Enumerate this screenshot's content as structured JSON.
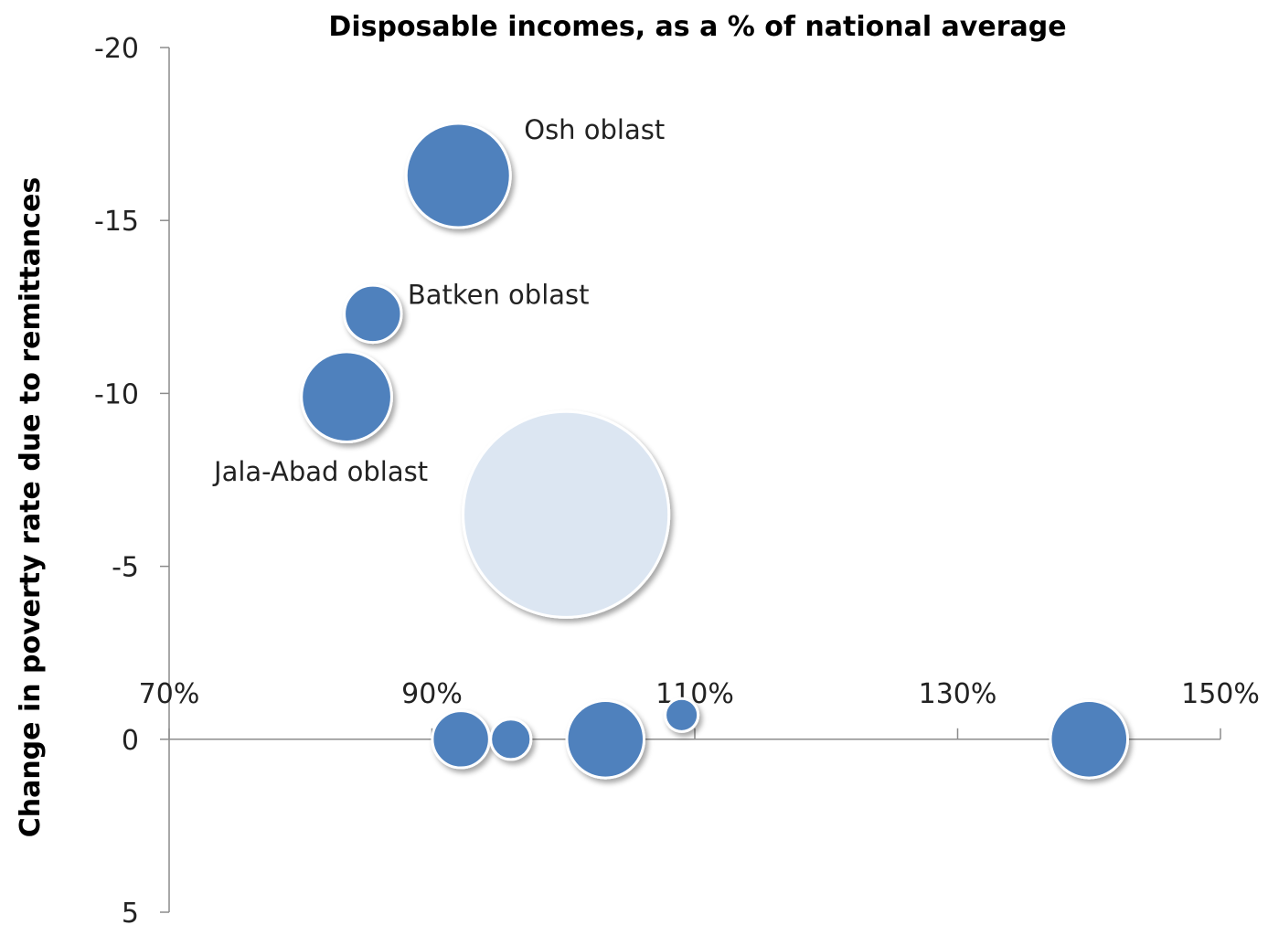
{
  "chart_data": {
    "type": "bubble",
    "title": "Disposable incomes, as a % of national average",
    "xlabel": "",
    "ylabel": "Change in poverty rate due to remittances",
    "x_unit": "%",
    "xlim": [
      70,
      150
    ],
    "x_ticks": [
      70,
      90,
      110,
      130,
      150
    ],
    "x_tick_labels": [
      "70%",
      "90%",
      "110%",
      "130%",
      "150%"
    ],
    "ylim": [
      -20,
      5
    ],
    "y_reversed": true,
    "y_ticks": [
      -20,
      -15,
      -10,
      -5,
      0,
      5
    ],
    "y_tick_labels": [
      "-20",
      "-15",
      "-10",
      "-5",
      "0",
      "5"
    ],
    "x_axis_crosses_y_at": 0,
    "grid": false,
    "legend": "none",
    "points": [
      {
        "label": "Osh oblast",
        "x": 92.0,
        "y": -16.3,
        "size": 1.0,
        "color": "#4f81bd"
      },
      {
        "label": "Batken oblast",
        "x": 85.5,
        "y": -12.3,
        "size": 0.3,
        "color": "#4f81bd"
      },
      {
        "label": "Jala-Abad oblast",
        "x": 83.5,
        "y": -9.9,
        "size": 0.75,
        "color": "#4f81bd"
      },
      {
        "label": "",
        "x": 100.2,
        "y": -6.5,
        "size": 3.9,
        "color": "#dce6f2"
      },
      {
        "label": "",
        "x": 92.2,
        "y": 0.0,
        "size": 0.3,
        "color": "#4f81bd"
      },
      {
        "label": "",
        "x": 96.0,
        "y": 0.0,
        "size": 0.15,
        "color": "#4f81bd"
      },
      {
        "label": "",
        "x": 103.2,
        "y": 0.0,
        "size": 0.55,
        "color": "#4f81bd"
      },
      {
        "label": "",
        "x": 109.0,
        "y": -0.7,
        "size": 0.1,
        "color": "#4f81bd"
      },
      {
        "label": "",
        "x": 140.0,
        "y": 0.0,
        "size": 0.55,
        "color": "#4f81bd"
      }
    ]
  }
}
